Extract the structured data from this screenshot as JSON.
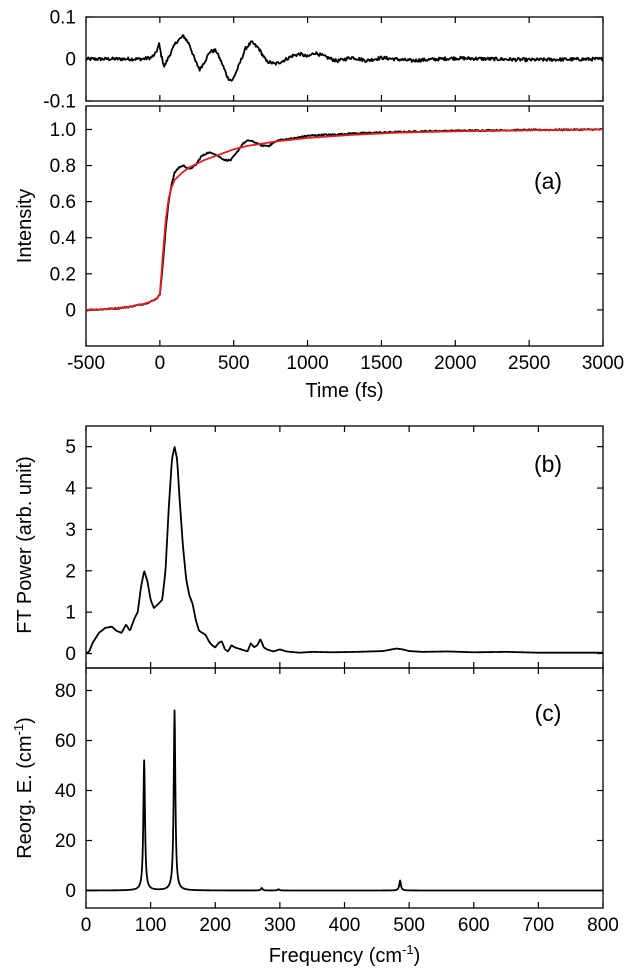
{
  "chart_data": [
    {
      "id": "residual",
      "type": "line",
      "panel_label": "",
      "xlabel": "",
      "ylabel": "",
      "xlim": [
        -500,
        3000
      ],
      "ylim": [
        -0.1,
        0.1
      ],
      "yticks": [
        -0.1,
        0,
        0.1
      ],
      "ytick_labels": [
        "-0.1",
        "0",
        "0.1"
      ],
      "series": [
        {
          "color": "#000000",
          "noise": 0.004,
          "points": [
            [
              -500,
              0
            ],
            [
              -300,
              0
            ],
            [
              -120,
              0
            ],
            [
              -60,
              0.003
            ],
            [
              -30,
              0.012
            ],
            [
              -5,
              0.035
            ],
            [
              10,
              0.008
            ],
            [
              30,
              -0.018
            ],
            [
              60,
              0.005
            ],
            [
              110,
              0.04
            ],
            [
              160,
              0.055
            ],
            [
              200,
              0.035
            ],
            [
              240,
              -0.005
            ],
            [
              270,
              -0.025
            ],
            [
              300,
              -0.008
            ],
            [
              340,
              0.018
            ],
            [
              380,
              0.02
            ],
            [
              420,
              -0.01
            ],
            [
              460,
              -0.045
            ],
            [
              490,
              -0.052
            ],
            [
              530,
              -0.02
            ],
            [
              580,
              0.025
            ],
            [
              620,
              0.04
            ],
            [
              670,
              0.025
            ],
            [
              720,
              -0.005
            ],
            [
              780,
              -0.012
            ],
            [
              830,
              -0.005
            ],
            [
              900,
              0.008
            ],
            [
              950,
              0.012
            ],
            [
              1000,
              0.005
            ],
            [
              1050,
              0.015
            ],
            [
              1100,
              0.008
            ],
            [
              1200,
              -0.005
            ],
            [
              1300,
              0.004
            ],
            [
              1400,
              -0.004
            ],
            [
              1500,
              0.003
            ],
            [
              1700,
              -0.004
            ],
            [
              2000,
              0.002
            ],
            [
              2500,
              -0.002
            ],
            [
              3000,
              0
            ]
          ]
        }
      ]
    },
    {
      "id": "intensity",
      "type": "line",
      "panel_label": "(a)",
      "xlabel": "Time (fs)",
      "ylabel": "Intensity",
      "xlim": [
        -500,
        3000
      ],
      "ylim": [
        -0.2,
        1.13
      ],
      "xticks": [
        -500,
        0,
        500,
        1000,
        1500,
        2000,
        2500,
        3000
      ],
      "xtick_labels": [
        "-500",
        "0",
        "500",
        "1000",
        "1500",
        "2000",
        "2500",
        "3000"
      ],
      "yticks": [
        0,
        0.2,
        0.4,
        0.6,
        0.8,
        1.0
      ],
      "ytick_labels": [
        "0",
        "0.2",
        "0.4",
        "0.6",
        "0.8",
        "1.0"
      ],
      "series": [
        {
          "color": "#000000",
          "noise": 0.004,
          "points": [
            [
              -500,
              0
            ],
            [
              -400,
              0.003
            ],
            [
              -300,
              0.008
            ],
            [
              -200,
              0.018
            ],
            [
              -100,
              0.035
            ],
            [
              -50,
              0.05
            ],
            [
              -20,
              0.065
            ],
            [
              0,
              0.085
            ],
            [
              20,
              0.25
            ],
            [
              40,
              0.45
            ],
            [
              60,
              0.6
            ],
            [
              80,
              0.7
            ],
            [
              100,
              0.76
            ],
            [
              130,
              0.79
            ],
            [
              160,
              0.8
            ],
            [
              200,
              0.78
            ],
            [
              240,
              0.8
            ],
            [
              280,
              0.85
            ],
            [
              320,
              0.87
            ],
            [
              360,
              0.87
            ],
            [
              400,
              0.85
            ],
            [
              440,
              0.83
            ],
            [
              480,
              0.83
            ],
            [
              520,
              0.87
            ],
            [
              560,
              0.92
            ],
            [
              600,
              0.94
            ],
            [
              640,
              0.93
            ],
            [
              690,
              0.91
            ],
            [
              740,
              0.91
            ],
            [
              800,
              0.94
            ],
            [
              900,
              0.95
            ],
            [
              1000,
              0.965
            ],
            [
              1100,
              0.97
            ],
            [
              1200,
              0.972
            ],
            [
              1300,
              0.978
            ],
            [
              1500,
              0.983
            ],
            [
              1800,
              0.99
            ],
            [
              2100,
              0.994
            ],
            [
              2500,
              0.997
            ],
            [
              3000,
              1.0
            ]
          ]
        },
        {
          "color": "#e02020",
          "noise": 0,
          "points": [
            [
              -500,
              0
            ],
            [
              -400,
              0.003
            ],
            [
              -300,
              0.008
            ],
            [
              -200,
              0.018
            ],
            [
              -100,
              0.035
            ],
            [
              -50,
              0.05
            ],
            [
              -20,
              0.065
            ],
            [
              0,
              0.085
            ],
            [
              20,
              0.3
            ],
            [
              40,
              0.5
            ],
            [
              60,
              0.62
            ],
            [
              80,
              0.68
            ],
            [
              100,
              0.72
            ],
            [
              150,
              0.76
            ],
            [
              200,
              0.79
            ],
            [
              300,
              0.83
            ],
            [
              400,
              0.86
            ],
            [
              500,
              0.89
            ],
            [
              600,
              0.91
            ],
            [
              800,
              0.935
            ],
            [
              1000,
              0.953
            ],
            [
              1300,
              0.97
            ],
            [
              1600,
              0.982
            ],
            [
              2000,
              0.99
            ],
            [
              2500,
              0.996
            ],
            [
              3000,
              1.0
            ]
          ]
        }
      ]
    },
    {
      "id": "ft-power",
      "type": "line",
      "panel_label": "(b)",
      "xlabel": "",
      "ylabel": "FT Power (arb. unit)",
      "xlim": [
        0,
        800
      ],
      "ylim": [
        -0.35,
        5.5
      ],
      "yticks": [
        0,
        1,
        2,
        3,
        4,
        5
      ],
      "ytick_labels": [
        "0",
        "1",
        "2",
        "3",
        "4",
        "5"
      ],
      "series": [
        {
          "color": "#000000",
          "noise": 0,
          "points": [
            [
              0,
              0
            ],
            [
              5,
              0.05
            ],
            [
              10,
              0.25
            ],
            [
              20,
              0.5
            ],
            [
              30,
              0.62
            ],
            [
              40,
              0.65
            ],
            [
              47,
              0.55
            ],
            [
              55,
              0.5
            ],
            [
              62,
              0.7
            ],
            [
              68,
              0.55
            ],
            [
              75,
              0.85
            ],
            [
              80,
              1.0
            ],
            [
              85,
              1.6
            ],
            [
              90,
              2.0
            ],
            [
              95,
              1.75
            ],
            [
              100,
              1.3
            ],
            [
              105,
              1.1
            ],
            [
              112,
              1.2
            ],
            [
              118,
              1.3
            ],
            [
              123,
              2.0
            ],
            [
              128,
              3.5
            ],
            [
              133,
              4.7
            ],
            [
              137,
              5.0
            ],
            [
              141,
              4.7
            ],
            [
              145,
              3.7
            ],
            [
              150,
              2.6
            ],
            [
              155,
              1.8
            ],
            [
              160,
              1.4
            ],
            [
              165,
              1.2
            ],
            [
              170,
              0.8
            ],
            [
              175,
              0.55
            ],
            [
              180,
              0.5
            ],
            [
              185,
              0.45
            ],
            [
              190,
              0.3
            ],
            [
              195,
              0.2
            ],
            [
              200,
              0.15
            ],
            [
              205,
              0.25
            ],
            [
              210,
              0.3
            ],
            [
              215,
              0.1
            ],
            [
              220,
              0.05
            ],
            [
              225,
              0.2
            ],
            [
              230,
              0.15
            ],
            [
              240,
              0.1
            ],
            [
              250,
              0.05
            ],
            [
              255,
              0.25
            ],
            [
              260,
              0.15
            ],
            [
              265,
              0.2
            ],
            [
              270,
              0.35
            ],
            [
              275,
              0.15
            ],
            [
              280,
              0.1
            ],
            [
              290,
              0.05
            ],
            [
              300,
              0.1
            ],
            [
              310,
              0.05
            ],
            [
              330,
              0.02
            ],
            [
              350,
              0.04
            ],
            [
              380,
              0.03
            ],
            [
              420,
              0.04
            ],
            [
              460,
              0.06
            ],
            [
              480,
              0.12
            ],
            [
              490,
              0.1
            ],
            [
              500,
              0.06
            ],
            [
              520,
              0.04
            ],
            [
              560,
              0.05
            ],
            [
              600,
              0.03
            ],
            [
              650,
              0.04
            ],
            [
              700,
              0.02
            ],
            [
              750,
              0.02
            ],
            [
              800,
              0.02
            ]
          ]
        }
      ]
    },
    {
      "id": "reorg-energy",
      "type": "line",
      "panel_label": "(c)",
      "xlabel": "Frequency (cm-1)",
      "ylabel": "Reorg. E. (cm-1)",
      "xlim": [
        0,
        800
      ],
      "ylim": [
        -7,
        89
      ],
      "xticks": [
        0,
        100,
        200,
        300,
        400,
        500,
        600,
        700,
        800
      ],
      "xtick_labels": [
        "0",
        "100",
        "200",
        "300",
        "400",
        "500",
        "600",
        "700",
        "800"
      ],
      "yticks": [
        0,
        20,
        40,
        60,
        80
      ],
      "ytick_labels": [
        "0",
        "20",
        "40",
        "60",
        "80"
      ],
      "series": [
        {
          "color": "#000000",
          "noise": 0,
          "peaks": [
            {
              "x": 90,
              "height": 52
            },
            {
              "x": 137,
              "height": 72
            },
            {
              "x": 272,
              "height": 1
            },
            {
              "x": 298,
              "height": 0.5
            },
            {
              "x": 486,
              "height": 4
            }
          ],
          "peak_width": 1.5
        }
      ]
    }
  ]
}
